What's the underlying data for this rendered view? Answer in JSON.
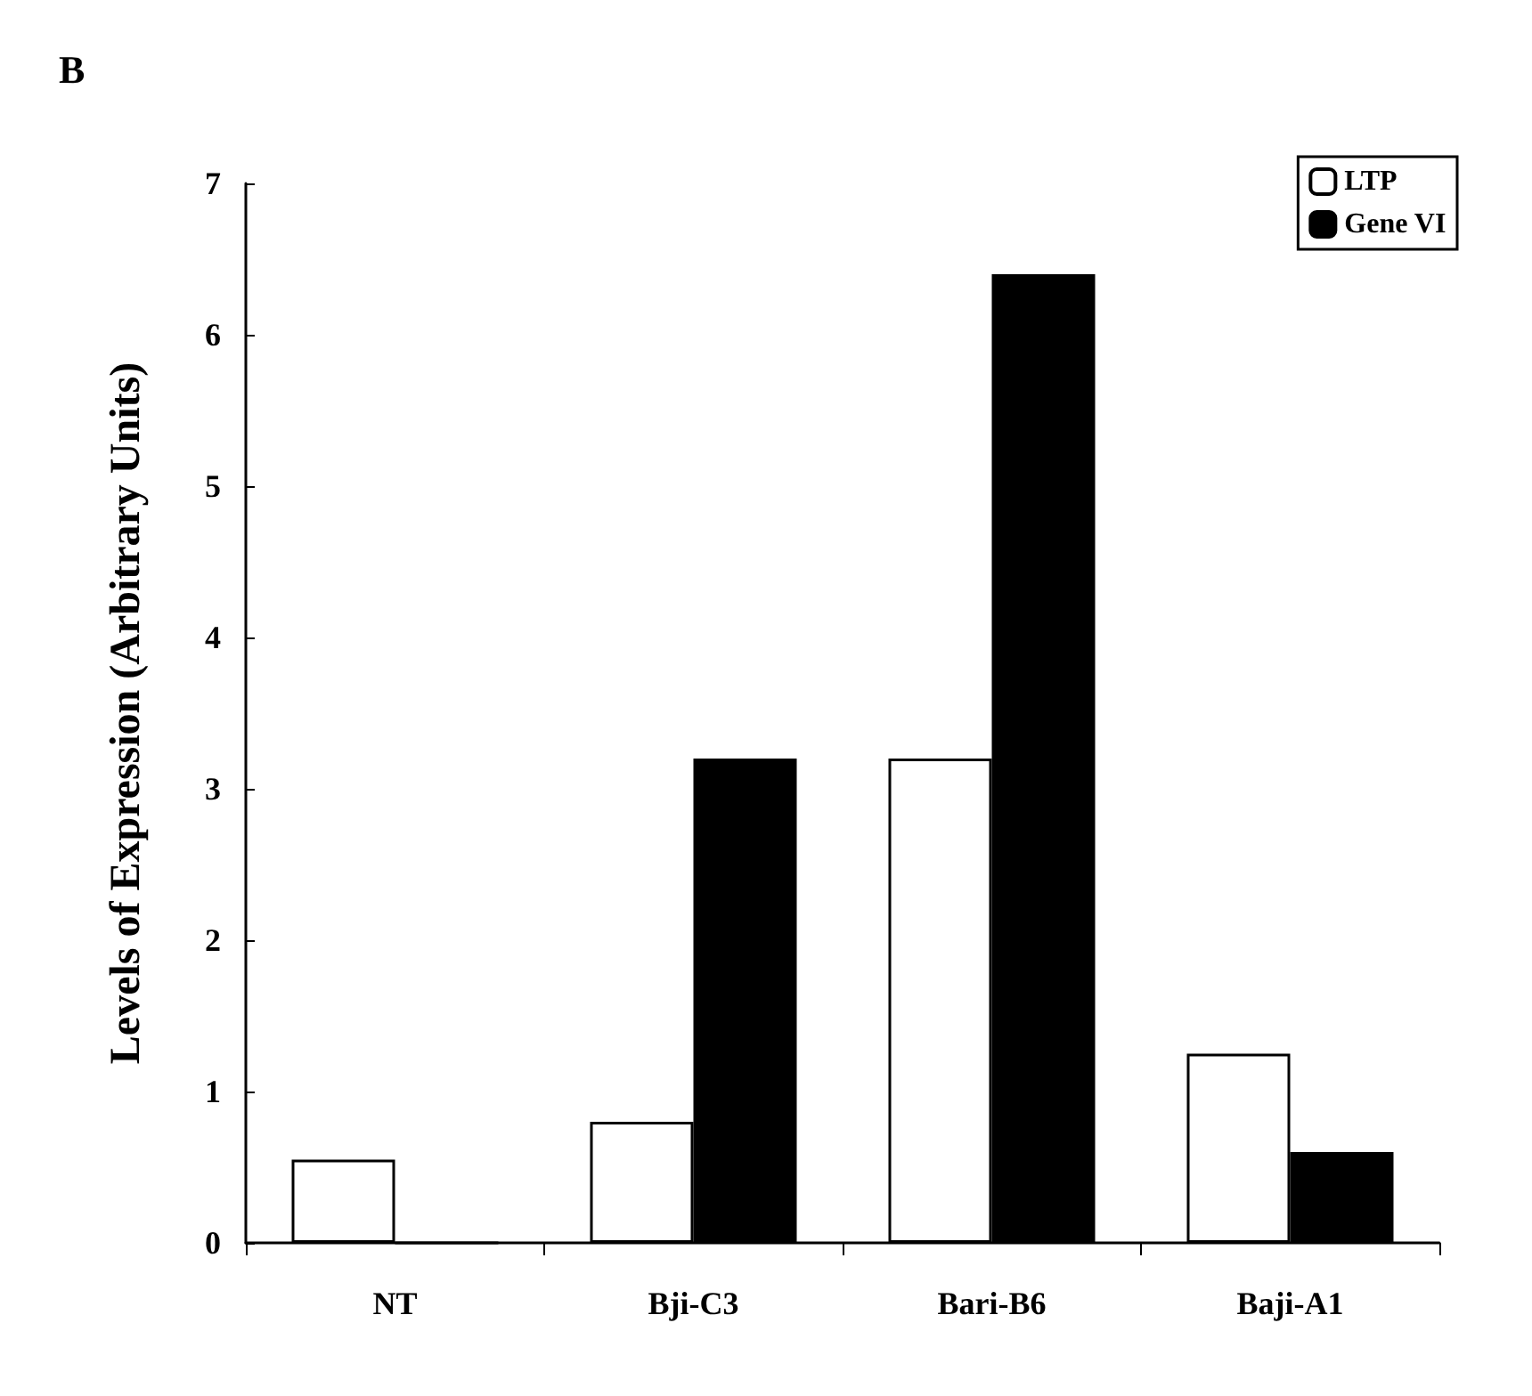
{
  "chart_data": {
    "type": "bar",
    "title": "B",
    "ylabel": "Levels of Expression (Arbitrary Units)",
    "categories": [
      "NT",
      "Bji-C3",
      "Bari-B6",
      "Baji-A1"
    ],
    "series": [
      {
        "name": "LTP",
        "color": "#ffffff",
        "values": [
          0.55,
          0.8,
          3.2,
          1.25
        ]
      },
      {
        "name": "Gene VI",
        "color": "#000000",
        "values": [
          0,
          3.2,
          6.4,
          0.6
        ]
      }
    ],
    "ylim": [
      0,
      7
    ],
    "yticks": [
      0,
      1,
      2,
      3,
      4,
      5,
      6,
      7
    ],
    "legend": "top right"
  }
}
